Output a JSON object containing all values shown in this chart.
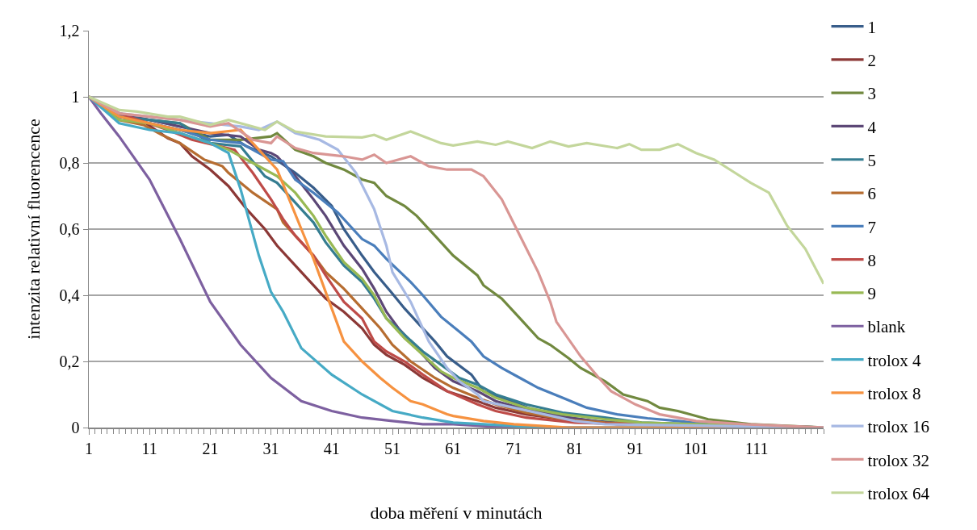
{
  "chart_data": {
    "type": "line",
    "xlabel": "doba měření v minutách",
    "ylabel": "intenzita relativní fluorencence",
    "xlim": [
      1,
      122
    ],
    "xticks": [
      1,
      11,
      21,
      31,
      41,
      51,
      61,
      71,
      81,
      91,
      101,
      111
    ],
    "ylim": [
      0,
      1.2
    ],
    "yticks": [
      0,
      {
        "value": 0.2,
        "label": "0,2"
      },
      {
        "value": 0.4,
        "label": "0,4"
      },
      {
        "value": 0.6,
        "label": "0,6"
      },
      {
        "value": 0.8,
        "label": "0,8"
      },
      1,
      {
        "value": 1.2,
        "label": "1,2"
      }
    ],
    "grid": "y",
    "legend": "right",
    "marker": "none",
    "line_style": "solid",
    "series": [
      {
        "name": "1",
        "color": "#385d8a",
        "x": [
          1,
          6,
          11,
          16,
          21,
          24,
          27,
          31,
          35,
          38,
          41,
          43,
          46,
          48,
          51,
          53,
          55,
          58,
          60,
          64,
          66,
          69,
          74,
          78,
          84,
          92,
          122
        ],
        "values": [
          1,
          0.94,
          0.92,
          0.9,
          0.88,
          0.885,
          0.85,
          0.82,
          0.77,
          0.725,
          0.67,
          0.6,
          0.52,
          0.47,
          0.405,
          0.36,
          0.32,
          0.26,
          0.215,
          0.16,
          0.11,
          0.09,
          0.055,
          0.036,
          0.02,
          0.01,
          0
        ]
      },
      {
        "name": "2",
        "color": "#8c3836",
        "x": [
          1,
          6,
          10,
          14,
          16,
          18,
          21,
          24,
          27,
          30,
          32,
          35,
          38,
          40,
          43,
          46,
          48,
          50,
          53,
          56,
          60,
          65,
          68,
          73,
          81,
          89,
          122
        ],
        "values": [
          1,
          0.94,
          0.925,
          0.875,
          0.86,
          0.82,
          0.78,
          0.73,
          0.66,
          0.6,
          0.55,
          0.49,
          0.43,
          0.39,
          0.35,
          0.3,
          0.25,
          0.22,
          0.19,
          0.15,
          0.11,
          0.08,
          0.06,
          0.04,
          0.02,
          0.01,
          0
        ]
      },
      {
        "name": "3",
        "color": "#71893f",
        "x": [
          1,
          6,
          11,
          16,
          21,
          26,
          31,
          32,
          35,
          38,
          40,
          43,
          46,
          48,
          50,
          53,
          55,
          58,
          61,
          65,
          66,
          69,
          72,
          75,
          77,
          80,
          82,
          86,
          89,
          93,
          95,
          98,
          103,
          110,
          122
        ],
        "values": [
          1,
          0.95,
          0.93,
          0.92,
          0.87,
          0.87,
          0.88,
          0.89,
          0.84,
          0.82,
          0.8,
          0.78,
          0.75,
          0.74,
          0.7,
          0.67,
          0.64,
          0.58,
          0.52,
          0.46,
          0.43,
          0.39,
          0.33,
          0.27,
          0.25,
          0.21,
          0.18,
          0.14,
          0.1,
          0.08,
          0.06,
          0.05,
          0.025,
          0.01,
          0
        ]
      },
      {
        "name": "4",
        "color": "#5c4776",
        "x": [
          1,
          6,
          11,
          16,
          21,
          26,
          29,
          31,
          32,
          35,
          38,
          40,
          43,
          46,
          48,
          50,
          52,
          55,
          58,
          61,
          65,
          68,
          74,
          80,
          88,
          122
        ],
        "values": [
          1,
          0.95,
          0.93,
          0.91,
          0.89,
          0.88,
          0.84,
          0.83,
          0.82,
          0.76,
          0.69,
          0.64,
          0.55,
          0.48,
          0.42,
          0.35,
          0.3,
          0.24,
          0.18,
          0.14,
          0.11,
          0.08,
          0.05,
          0.03,
          0.01,
          0
        ]
      },
      {
        "name": "5",
        "color": "#357d91",
        "x": [
          1,
          6,
          11,
          16,
          21,
          26,
          30,
          32,
          35,
          38,
          40,
          43,
          46,
          48,
          50,
          53,
          56,
          59,
          62,
          65,
          68,
          73,
          79,
          86,
          92,
          101,
          122
        ],
        "values": [
          1,
          0.94,
          0.93,
          0.92,
          0.86,
          0.85,
          0.76,
          0.74,
          0.68,
          0.62,
          0.56,
          0.49,
          0.44,
          0.39,
          0.33,
          0.28,
          0.23,
          0.19,
          0.15,
          0.13,
          0.1,
          0.07,
          0.045,
          0.03,
          0.015,
          0.01,
          0
        ]
      },
      {
        "name": "6",
        "color": "#b66d31",
        "x": [
          1,
          6,
          10,
          13,
          16,
          20,
          23,
          24,
          28,
          32,
          33,
          35,
          38,
          40,
          43,
          46,
          49,
          51,
          54,
          58,
          61,
          65,
          68,
          73,
          79,
          86,
          122
        ],
        "values": [
          1,
          0.93,
          0.915,
          0.885,
          0.86,
          0.81,
          0.79,
          0.77,
          0.71,
          0.66,
          0.62,
          0.58,
          0.52,
          0.47,
          0.42,
          0.36,
          0.3,
          0.25,
          0.2,
          0.15,
          0.12,
          0.09,
          0.07,
          0.045,
          0.025,
          0.015,
          0
        ]
      },
      {
        "name": "7",
        "color": "#4a7ebb",
        "x": [
          1,
          6,
          11,
          16,
          21,
          26,
          31,
          33,
          35,
          38,
          42,
          46,
          48,
          50,
          54,
          56,
          59,
          62,
          64,
          66,
          69,
          72,
          75,
          79,
          83,
          88,
          93,
          98,
          103,
          122
        ],
        "values": [
          1,
          0.94,
          0.92,
          0.9,
          0.87,
          0.86,
          0.81,
          0.805,
          0.75,
          0.71,
          0.65,
          0.57,
          0.55,
          0.51,
          0.44,
          0.4,
          0.335,
          0.29,
          0.26,
          0.215,
          0.18,
          0.15,
          0.12,
          0.09,
          0.06,
          0.04,
          0.028,
          0.02,
          0.01,
          0
        ]
      },
      {
        "name": "8",
        "color": "#be4b48",
        "x": [
          1,
          6,
          14,
          18,
          25,
          28,
          31,
          32,
          33,
          35,
          38,
          40,
          43,
          46,
          48,
          50,
          53,
          56,
          60,
          65,
          68,
          73,
          81,
          89,
          122
        ],
        "values": [
          1,
          0.95,
          0.9,
          0.87,
          0.84,
          0.77,
          0.69,
          0.66,
          0.63,
          0.58,
          0.52,
          0.46,
          0.38,
          0.33,
          0.26,
          0.23,
          0.2,
          0.16,
          0.11,
          0.07,
          0.05,
          0.03,
          0.015,
          0.01,
          0
        ]
      },
      {
        "name": "9",
        "color": "#98b954",
        "x": [
          1,
          6,
          11,
          16,
          21,
          24,
          28,
          32,
          35,
          38,
          40,
          43,
          46,
          48,
          50,
          53,
          56,
          59,
          61,
          65,
          68,
          73,
          79,
          86,
          92,
          101,
          122
        ],
        "values": [
          1,
          0.93,
          0.92,
          0.89,
          0.86,
          0.84,
          0.8,
          0.76,
          0.71,
          0.64,
          0.58,
          0.5,
          0.45,
          0.4,
          0.33,
          0.27,
          0.22,
          0.17,
          0.15,
          0.12,
          0.09,
          0.06,
          0.04,
          0.025,
          0.015,
          0.01,
          0
        ]
      },
      {
        "name": "blank",
        "color": "#7d60a0",
        "x": [
          1,
          3,
          6,
          11,
          16,
          21,
          26,
          31,
          36,
          41,
          46,
          51,
          56,
          61,
          70,
          122
        ],
        "values": [
          1,
          0.95,
          0.88,
          0.75,
          0.57,
          0.38,
          0.25,
          0.15,
          0.08,
          0.05,
          0.03,
          0.02,
          0.01,
          0.01,
          0,
          0
        ]
      },
      {
        "name": "trolox 4",
        "color": "#46aac5",
        "x": [
          1,
          6,
          11,
          16,
          21,
          23,
          24,
          26,
          29,
          31,
          33,
          36,
          41,
          46,
          51,
          56,
          61,
          66,
          76,
          122
        ],
        "values": [
          1,
          0.92,
          0.9,
          0.89,
          0.86,
          0.84,
          0.83,
          0.72,
          0.52,
          0.41,
          0.35,
          0.24,
          0.16,
          0.1,
          0.05,
          0.03,
          0.015,
          0.01,
          0,
          0
        ]
      },
      {
        "name": "trolox 8",
        "color": "#f69240",
        "x": [
          1,
          6,
          11,
          16,
          21,
          26,
          29,
          31,
          32,
          36,
          38,
          41,
          43,
          46,
          49,
          51,
          54,
          56,
          60,
          61,
          66,
          71,
          80,
          122
        ],
        "values": [
          1,
          0.94,
          0.92,
          0.9,
          0.89,
          0.9,
          0.84,
          0.8,
          0.78,
          0.6,
          0.51,
          0.36,
          0.26,
          0.2,
          0.15,
          0.12,
          0.08,
          0.07,
          0.04,
          0.035,
          0.02,
          0.01,
          0,
          0
        ]
      },
      {
        "name": "trolox 16",
        "color": "#a7b9e3",
        "x": [
          1,
          6,
          11,
          16,
          21,
          26,
          29,
          32,
          35,
          39,
          42,
          45,
          48,
          50,
          51,
          54,
          57,
          60,
          62,
          65,
          66,
          71,
          76,
          81,
          86,
          122
        ],
        "values": [
          1,
          0.95,
          0.94,
          0.93,
          0.92,
          0.91,
          0.9,
          0.925,
          0.89,
          0.87,
          0.84,
          0.77,
          0.66,
          0.55,
          0.47,
          0.38,
          0.26,
          0.18,
          0.14,
          0.1,
          0.08,
          0.06,
          0.04,
          0.02,
          0.01,
          0
        ]
      },
      {
        "name": "trolox 32",
        "color": "#d99694",
        "x": [
          1,
          6,
          11,
          16,
          21,
          24,
          28,
          31,
          32,
          35,
          38,
          43,
          46,
          48,
          50,
          54,
          57,
          60,
          64,
          66,
          69,
          72,
          75,
          77,
          78,
          82,
          85,
          87,
          91,
          95,
          101,
          109,
          122
        ],
        "values": [
          1,
          0.95,
          0.94,
          0.93,
          0.91,
          0.92,
          0.87,
          0.86,
          0.88,
          0.845,
          0.83,
          0.82,
          0.81,
          0.825,
          0.8,
          0.82,
          0.79,
          0.78,
          0.78,
          0.76,
          0.69,
          0.58,
          0.47,
          0.38,
          0.32,
          0.215,
          0.15,
          0.11,
          0.07,
          0.04,
          0.02,
          0.01,
          0
        ]
      },
      {
        "name": "trolox 64",
        "color": "#c3d69b",
        "x": [
          1,
          6,
          9,
          14,
          16,
          21,
          24,
          30,
          32,
          35,
          40,
          46,
          48,
          50,
          54,
          59,
          61,
          65,
          68,
          70,
          74,
          77,
          80,
          83,
          88,
          90,
          92,
          95,
          98,
          101,
          104,
          107,
          110,
          113,
          116,
          119,
          122
        ],
        "values": [
          1,
          0.96,
          0.955,
          0.94,
          0.94,
          0.915,
          0.93,
          0.9,
          0.925,
          0.895,
          0.88,
          0.877,
          0.885,
          0.87,
          0.895,
          0.86,
          0.853,
          0.865,
          0.855,
          0.865,
          0.845,
          0.865,
          0.85,
          0.86,
          0.845,
          0.857,
          0.84,
          0.84,
          0.857,
          0.83,
          0.81,
          0.775,
          0.74,
          0.71,
          0.61,
          0.54,
          0.435
        ]
      }
    ]
  }
}
